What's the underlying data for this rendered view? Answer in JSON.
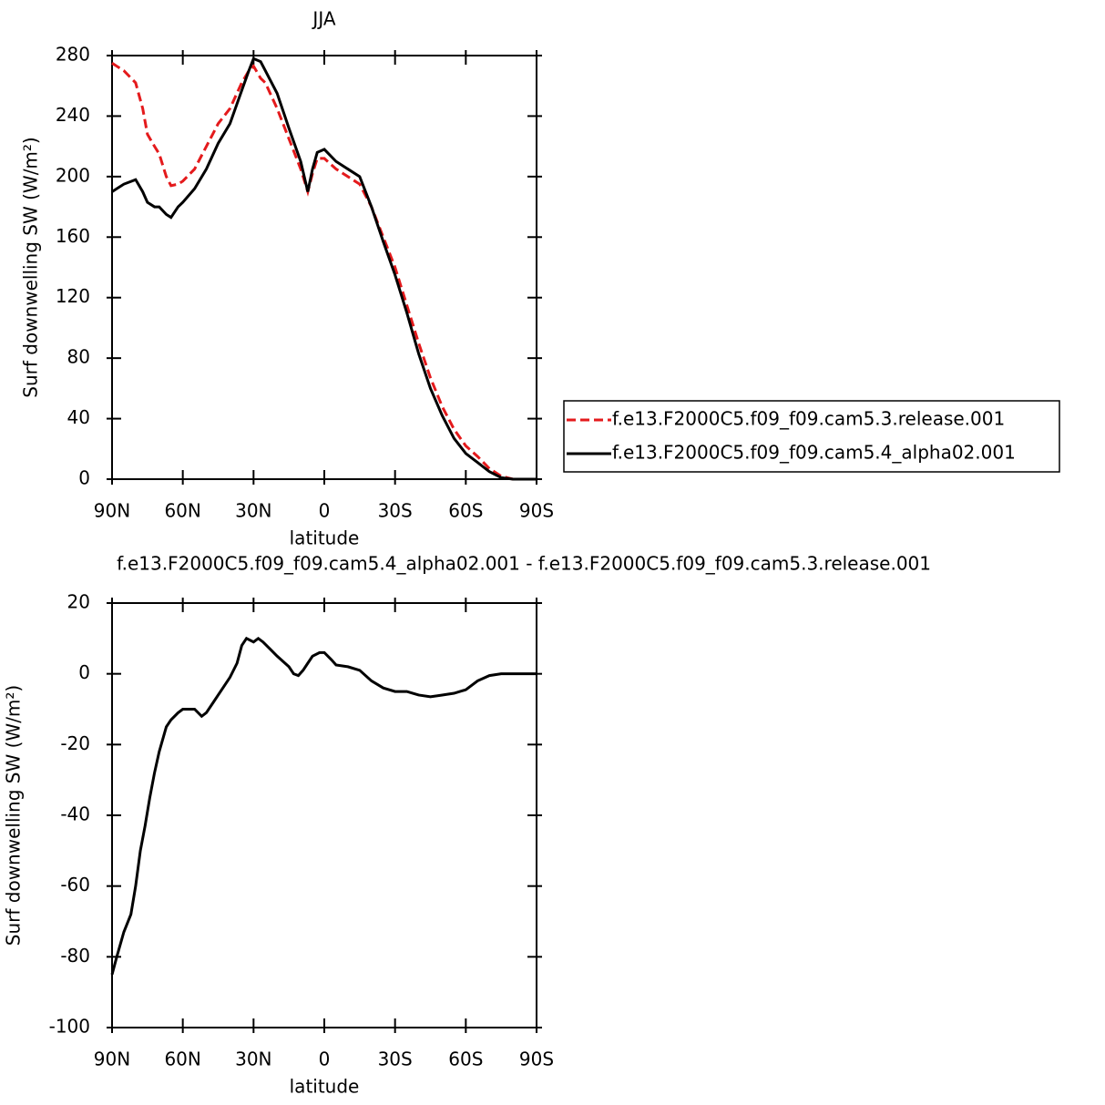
{
  "chart_data": [
    {
      "type": "line",
      "title": "JJA",
      "xlabel": "latitude",
      "ylabel": "Surf downwelling SW (W/m²)",
      "x": [
        90,
        85,
        80,
        77,
        75,
        72,
        70,
        67,
        65,
        62,
        60,
        55,
        50,
        45,
        40,
        35,
        32,
        30,
        27,
        25,
        20,
        15,
        10,
        7,
        5,
        3,
        0,
        -5,
        -10,
        -15,
        -20,
        -25,
        -30,
        -35,
        -40,
        -45,
        -50,
        -55,
        -60,
        -65,
        -70,
        -75,
        -80,
        -85,
        -90
      ],
      "series": [
        {
          "name": "f.e13.F2000C5.f09_f09.cam5.3.release.001",
          "color": "#e41a1c",
          "dash": "dashed",
          "values": [
            275,
            270,
            262,
            245,
            228,
            220,
            215,
            200,
            194,
            195,
            197,
            205,
            220,
            235,
            245,
            262,
            270,
            273,
            265,
            262,
            245,
            225,
            205,
            190,
            202,
            212,
            212,
            205,
            200,
            195,
            180,
            160,
            140,
            115,
            90,
            67,
            48,
            33,
            22,
            15,
            7,
            2,
            0,
            0,
            0
          ]
        },
        {
          "name": "f.e13.F2000C5.f09_f09.cam5.4_alpha02.001",
          "color": "#000000",
          "dash": "solid",
          "values": [
            190,
            195,
            198,
            190,
            183,
            180,
            180,
            175,
            173,
            180,
            183,
            192,
            205,
            222,
            235,
            257,
            270,
            278,
            276,
            270,
            255,
            232,
            210,
            190,
            205,
            216,
            218,
            210,
            205,
            200,
            180,
            157,
            135,
            110,
            83,
            60,
            42,
            27,
            17,
            11,
            5,
            1,
            0,
            0,
            0
          ]
        }
      ],
      "xlim": [
        90,
        -90
      ],
      "xticks": [
        {
          "value": 90,
          "label": "90N"
        },
        {
          "value": 60,
          "label": "60N"
        },
        {
          "value": 30,
          "label": "30N"
        },
        0,
        {
          "value": -30,
          "label": "30S"
        },
        {
          "value": -60,
          "label": "60S"
        },
        {
          "value": -90,
          "label": "90S"
        }
      ],
      "ylim": [
        0,
        280
      ],
      "yticks": [
        0,
        40,
        80,
        120,
        160,
        200,
        240,
        280
      ],
      "legend": "outside right"
    },
    {
      "type": "line",
      "title": "f.e13.F2000C5.f09_f09.cam5.4_alpha02.001 - f.e13.F2000C5.f09_f09.cam5.3.release.001",
      "xlabel": "latitude",
      "ylabel": "Surf downwelling SW (W/m²)",
      "x": [
        90,
        88,
        85,
        82,
        80,
        78,
        76,
        74,
        72,
        70,
        67,
        65,
        62,
        60,
        57,
        55,
        52,
        50,
        47,
        45,
        42,
        40,
        37,
        35,
        33,
        30,
        28,
        26,
        23,
        20,
        15,
        13,
        11,
        9,
        7,
        5,
        2,
        0,
        -3,
        -5,
        -10,
        -15,
        -20,
        -25,
        -30,
        -35,
        -40,
        -45,
        -50,
        -55,
        -60,
        -65,
        -70,
        -75,
        -80,
        -85,
        -90
      ],
      "series": [
        {
          "color": "#000000",
          "dash": "solid",
          "values": [
            -85,
            -80,
            -73,
            -68,
            -60,
            -50,
            -43,
            -35,
            -28,
            -22,
            -15,
            -13,
            -11,
            -10,
            -10,
            -10,
            -12,
            -11,
            -8,
            -6,
            -3,
            -1,
            3,
            8,
            10,
            9,
            10,
            9,
            7,
            5,
            2,
            0,
            -0.5,
            1,
            3,
            5,
            6,
            6,
            4,
            2.5,
            2,
            1,
            -2,
            -4,
            -5,
            -5,
            -6,
            -6.5,
            -6,
            -5.5,
            -4.5,
            -2,
            -0.5,
            0,
            0,
            0,
            0
          ]
        }
      ],
      "xlim": [
        90,
        -90
      ],
      "xticks": [
        {
          "value": 90,
          "label": "90N"
        },
        {
          "value": 60,
          "label": "60N"
        },
        {
          "value": 30,
          "label": "30N"
        },
        0,
        {
          "value": -30,
          "label": "30S"
        },
        {
          "value": -60,
          "label": "60S"
        },
        {
          "value": -90,
          "label": "90S"
        }
      ],
      "ylim": [
        -100,
        20
      ],
      "yticks": [
        -100,
        -80,
        -60,
        -40,
        -20,
        0,
        20
      ]
    }
  ]
}
